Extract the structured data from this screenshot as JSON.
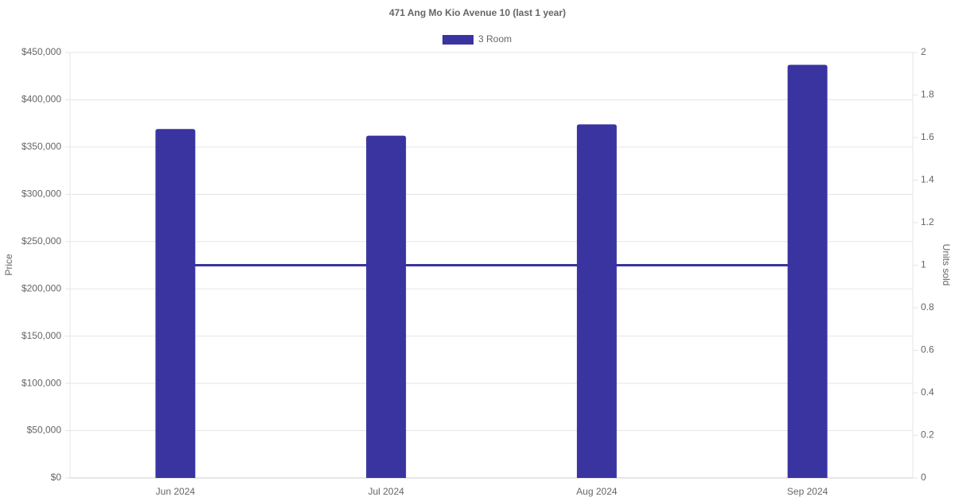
{
  "chart_data": {
    "type": "bar",
    "title": "471 Ang Mo Kio Avenue 10 (last 1 year)",
    "y_label": "Price",
    "y2_label": "Units sold",
    "categories": [
      "Jun 2024",
      "Jul 2024",
      "Aug 2024",
      "Sep 2024"
    ],
    "series": [
      {
        "name": "3 Room",
        "type": "bar",
        "color": "#3934a0",
        "values": [
          369000,
          362000,
          374000,
          437000
        ]
      },
      {
        "type": "line",
        "axis": "y2",
        "color": "#3934a0",
        "values": [
          1,
          1,
          1,
          1
        ]
      }
    ],
    "ylim": [
      0,
      450000
    ],
    "yticks": [
      {
        "value": 0,
        "label": "$0"
      },
      {
        "value": 50000,
        "label": "$50,000"
      },
      {
        "value": 100000,
        "label": "$100,000"
      },
      {
        "value": 150000,
        "label": "$150,000"
      },
      {
        "value": 200000,
        "label": "$200,000"
      },
      {
        "value": 250000,
        "label": "$250,000"
      },
      {
        "value": 300000,
        "label": "$300,000"
      },
      {
        "value": 350000,
        "label": "$350,000"
      },
      {
        "value": 400000,
        "label": "$400,000"
      },
      {
        "value": 450000,
        "label": "$450,000"
      }
    ],
    "y2lim": [
      0,
      2
    ],
    "y2ticks": [
      0,
      0.2,
      0.4,
      0.6,
      0.8,
      1,
      1.2,
      1.4,
      1.6,
      1.8,
      2
    ],
    "grid": true,
    "legend": "top"
  }
}
